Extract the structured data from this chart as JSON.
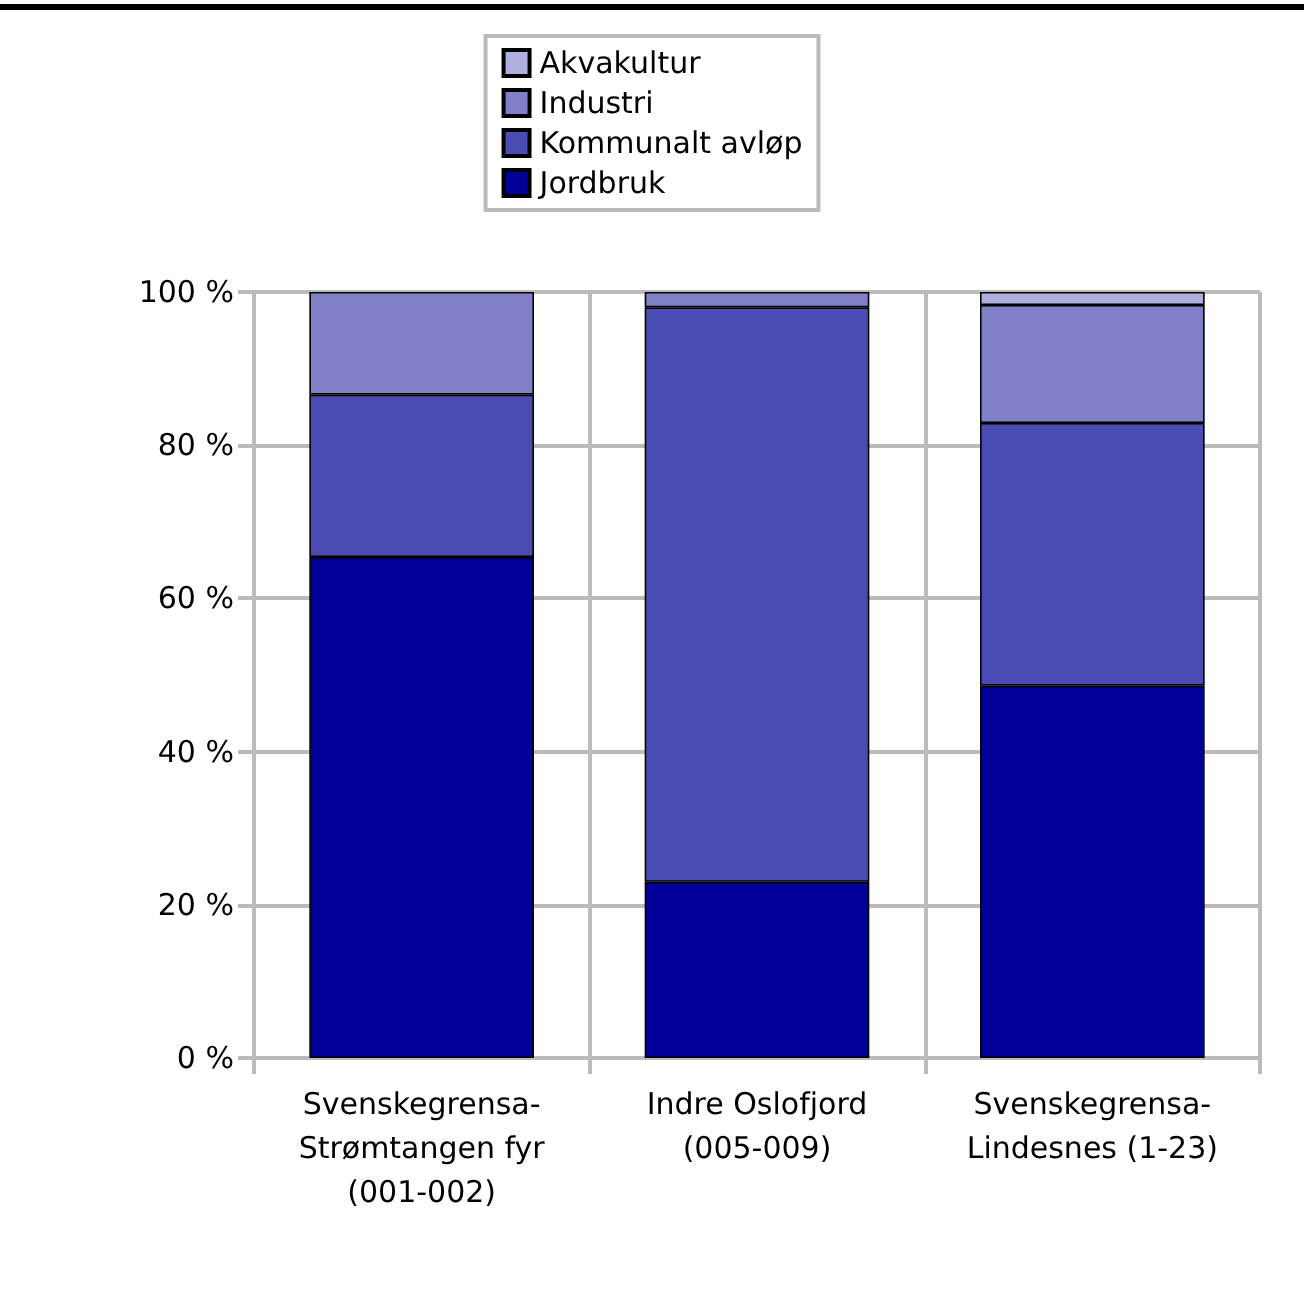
{
  "chart_data": {
    "type": "bar",
    "stacked": true,
    "categories": [
      "Svenskegrensa-\nStrømtangen fyr\n(001-002)",
      "Indre Oslofjord\n(005-009)",
      "Svenskegrensa-\nLindesnes (1-23)"
    ],
    "series": [
      {
        "name": "Jordbruk",
        "color": "#000099",
        "values": [
          65.4,
          23.0,
          48.6
        ]
      },
      {
        "name": "Kommunalt avløp",
        "color": "#4b4bb4",
        "values": [
          21.2,
          75.0,
          34.3
        ]
      },
      {
        "name": "Industri",
        "color": "#8080c8",
        "values": [
          13.4,
          2.0,
          15.4
        ]
      },
      {
        "name": "Akvakultur",
        "color": "#b0b0e0",
        "values": [
          null,
          null,
          1.7
        ]
      }
    ],
    "ylim": [
      0,
      100
    ],
    "yticks": [
      {
        "value": 0,
        "label": "0 %"
      },
      {
        "value": 20,
        "label": "20 %"
      },
      {
        "value": 40,
        "label": "40 %"
      },
      {
        "value": 60,
        "label": "60 %"
      },
      {
        "value": 80,
        "label": "80 %"
      },
      {
        "value": 100,
        "label": "100 %"
      }
    ],
    "grid": true,
    "legend": "top"
  }
}
